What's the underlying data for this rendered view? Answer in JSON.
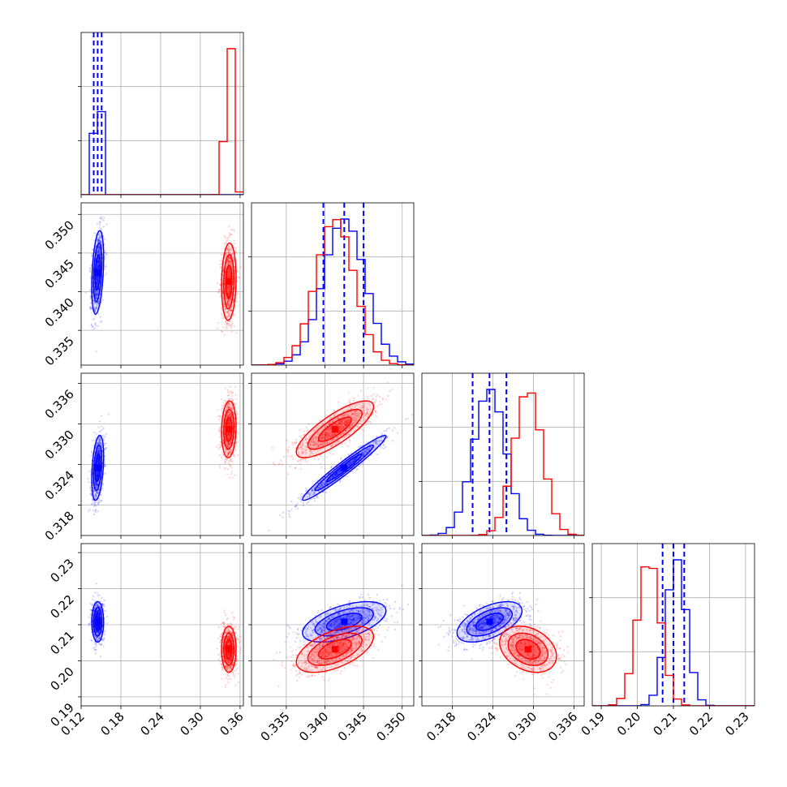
{
  "colors": {
    "blue": "#0000ff",
    "red": "#ff0000",
    "grid": "#b0b0b0",
    "axis": "#000000"
  },
  "chart_data": {
    "type": "corner",
    "grid": true,
    "params": [
      {
        "range": [
          0.12,
          0.365
        ],
        "ticks": [
          0.12,
          0.18,
          0.24,
          0.3,
          0.36
        ],
        "ticklabels": [
          "0.12",
          "0.18",
          "0.24",
          "0.30",
          "0.36"
        ]
      },
      {
        "range": [
          0.3305,
          0.3515
        ],
        "ticks": [
          0.335,
          0.34,
          0.345,
          0.35
        ],
        "ticklabels": [
          "0.335",
          "0.340",
          "0.345",
          "0.350"
        ]
      },
      {
        "range": [
          0.3135,
          0.3375
        ],
        "ticks": [
          0.318,
          0.324,
          0.33,
          0.336
        ],
        "ticklabels": [
          "0.318",
          "0.324",
          "0.330",
          "0.336"
        ]
      },
      {
        "range": [
          0.1875,
          0.2325
        ],
        "ticks": [
          0.19,
          0.2,
          0.21,
          0.22,
          0.23
        ],
        "ticklabels": [
          "0.19",
          "0.20",
          "0.21",
          "0.22",
          "0.23"
        ]
      }
    ],
    "series": [
      {
        "color": "#0000ff",
        "means": [
          0.145,
          0.3425,
          0.3235,
          0.2108
        ],
        "sigmas": [
          0.0045,
          0.0027,
          0.0024,
          0.0028
        ],
        "correlations": {
          "0-1": 0.35,
          "0-2": 0.35,
          "0-3": 0.0,
          "1-2": 0.97,
          "1-3": 0.55,
          "2-3": 0.55
        },
        "quantiles": [
          [
            0.139,
            0.145,
            0.151
          ],
          [
            0.3398,
            0.3425,
            0.345
          ],
          [
            0.321,
            0.3235,
            0.326
          ],
          [
            0.207,
            0.21,
            0.213
          ]
        ]
      },
      {
        "color": "#ff0000",
        "means": [
          0.343,
          0.3413,
          0.3292,
          0.2032
        ],
        "sigmas": [
          0.0055,
          0.0025,
          0.0021,
          0.0032
        ],
        "correlations": {
          "0-1": 0.1,
          "0-2": 0.1,
          "0-3": 0.0,
          "1-2": 0.8,
          "1-3": 0.55,
          "2-3": -0.3
        },
        "quantiles": null
      }
    ]
  }
}
